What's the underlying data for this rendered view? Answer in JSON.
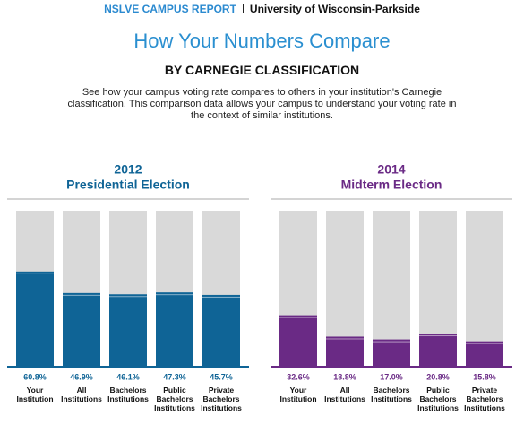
{
  "header": {
    "report": "NSLVE CAMPUS REPORT",
    "campus": "University of Wisconsin-Parkside"
  },
  "title": "How Your Numbers Compare",
  "subtitle": "BY CARNEGIE CLASSIFICATION",
  "description": "See how your campus voting rate compares to others in your institution's Carnegie classification. This comparison data allows your campus to understand your voting rate in the context of similar institutions.",
  "chart_data": [
    {
      "type": "bar",
      "title": "2012",
      "subtitle": "Presidential Election",
      "color": "#0f6496",
      "categories": [
        "Your Institution",
        "All Institutions",
        "Bachelors Institutions",
        "Public Bachelors Institutions",
        "Private Bachelors Institutions"
      ],
      "values": [
        60.8,
        46.9,
        46.1,
        47.3,
        45.7
      ],
      "value_labels": [
        "60.8%",
        "46.9%",
        "46.1%",
        "47.3%",
        "45.7%"
      ],
      "ylim": [
        0,
        100
      ]
    },
    {
      "type": "bar",
      "title": "2014",
      "subtitle": "Midterm Election",
      "color": "#6a2a85",
      "categories": [
        "Your Institution",
        "All Institutions",
        "Bachelors Institutions",
        "Public Bachelors Institutions",
        "Private Bachelors Institutions"
      ],
      "values": [
        32.6,
        18.8,
        17.0,
        20.8,
        15.8
      ],
      "value_labels": [
        "32.6%",
        "18.8%",
        "17.0%",
        "20.8%",
        "15.8%"
      ],
      "ylim": [
        0,
        100
      ]
    }
  ]
}
